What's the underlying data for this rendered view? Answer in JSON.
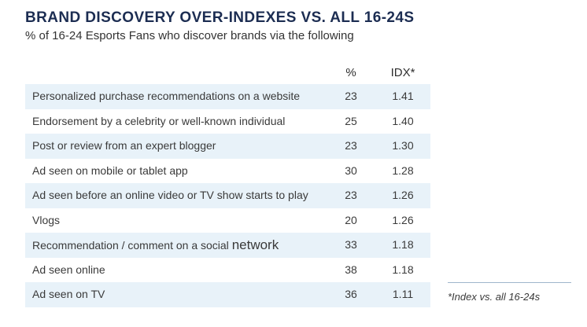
{
  "chart_data": {
    "type": "table",
    "title": "BRAND DISCOVERY OVER-INDEXES VS. ALL 16-24S",
    "subtitle": "% of 16-24 Esports Fans who discover brands via the following",
    "columns": [
      "%",
      "IDX*"
    ],
    "rows": [
      {
        "label": "Personalized purchase recommendations on a website",
        "pct": "23",
        "idx": "1.41"
      },
      {
        "label": "Endorsement by a celebrity or well-known individual",
        "pct": "25",
        "idx": "1.40"
      },
      {
        "label": "Post or review from an expert blogger",
        "pct": "23",
        "idx": "1.30"
      },
      {
        "label": "Ad seen on mobile or tablet app",
        "pct": "30",
        "idx": "1.28"
      },
      {
        "label": "Ad seen before an online video or TV show starts to play",
        "pct": "23",
        "idx": "1.26"
      },
      {
        "label": "Vlogs",
        "pct": "20",
        "idx": "1.26"
      },
      {
        "label": "Recommendation / comment on a social",
        "label_emphasis": "network",
        "pct": "33",
        "idx": "1.18"
      },
      {
        "label": "Ad seen online",
        "pct": "38",
        "idx": "1.18"
      },
      {
        "label": "Ad seen on TV",
        "pct": "36",
        "idx": "1.11"
      }
    ],
    "footnote": "*Index vs. all 16-24s"
  }
}
